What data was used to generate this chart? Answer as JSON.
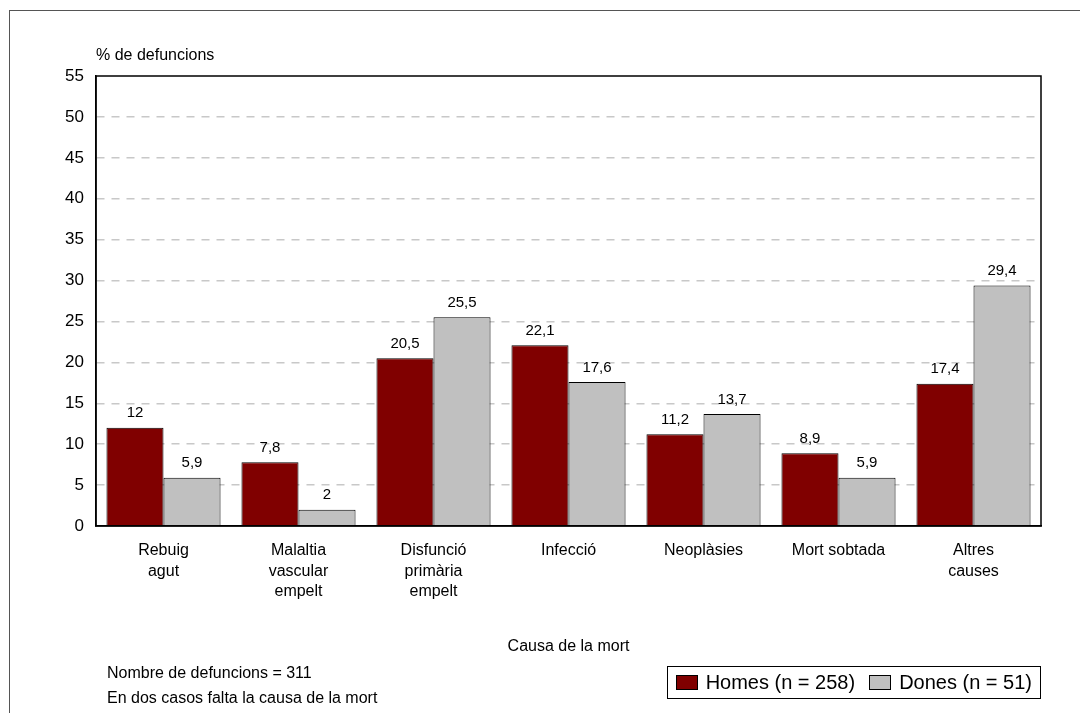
{
  "chart_data": {
    "type": "bar",
    "ylabel": "% de defuncions",
    "xlabel": "Causa de la mort",
    "categories": [
      "Rebuig\nagut",
      "Malaltia\nvascular\nempelt",
      "Disfunció\nprimària\nempelt",
      "Infecció",
      "Neoplàsies",
      "Mort sobtada",
      "Altres\ncauses"
    ],
    "series": [
      {
        "name": "Homes (n = 258)",
        "color": "#800000",
        "values": [
          12,
          7.8,
          20.5,
          22.1,
          11.2,
          8.9,
          17.4
        ],
        "value_labels": [
          "12",
          "7,8",
          "20,5",
          "22,1",
          "11,2",
          "8,9",
          "17,4"
        ]
      },
      {
        "name": "Dones (n = 51)",
        "color": "#c0c0c0",
        "values": [
          5.9,
          2,
          25.5,
          17.6,
          13.7,
          5.9,
          29.4
        ],
        "value_labels": [
          "5,9",
          "2",
          "25,5",
          "17,6",
          "13,7",
          "5,9",
          "29,4"
        ]
      }
    ],
    "ylim": [
      0,
      55
    ],
    "yticks": [
      0,
      5,
      10,
      15,
      20,
      25,
      30,
      35,
      40,
      45,
      50,
      55
    ],
    "grid": "y",
    "legend": "bottom right",
    "annotations": [
      "Nombre de defuncions = 311",
      "En dos casos falta la causa de la mort"
    ]
  }
}
